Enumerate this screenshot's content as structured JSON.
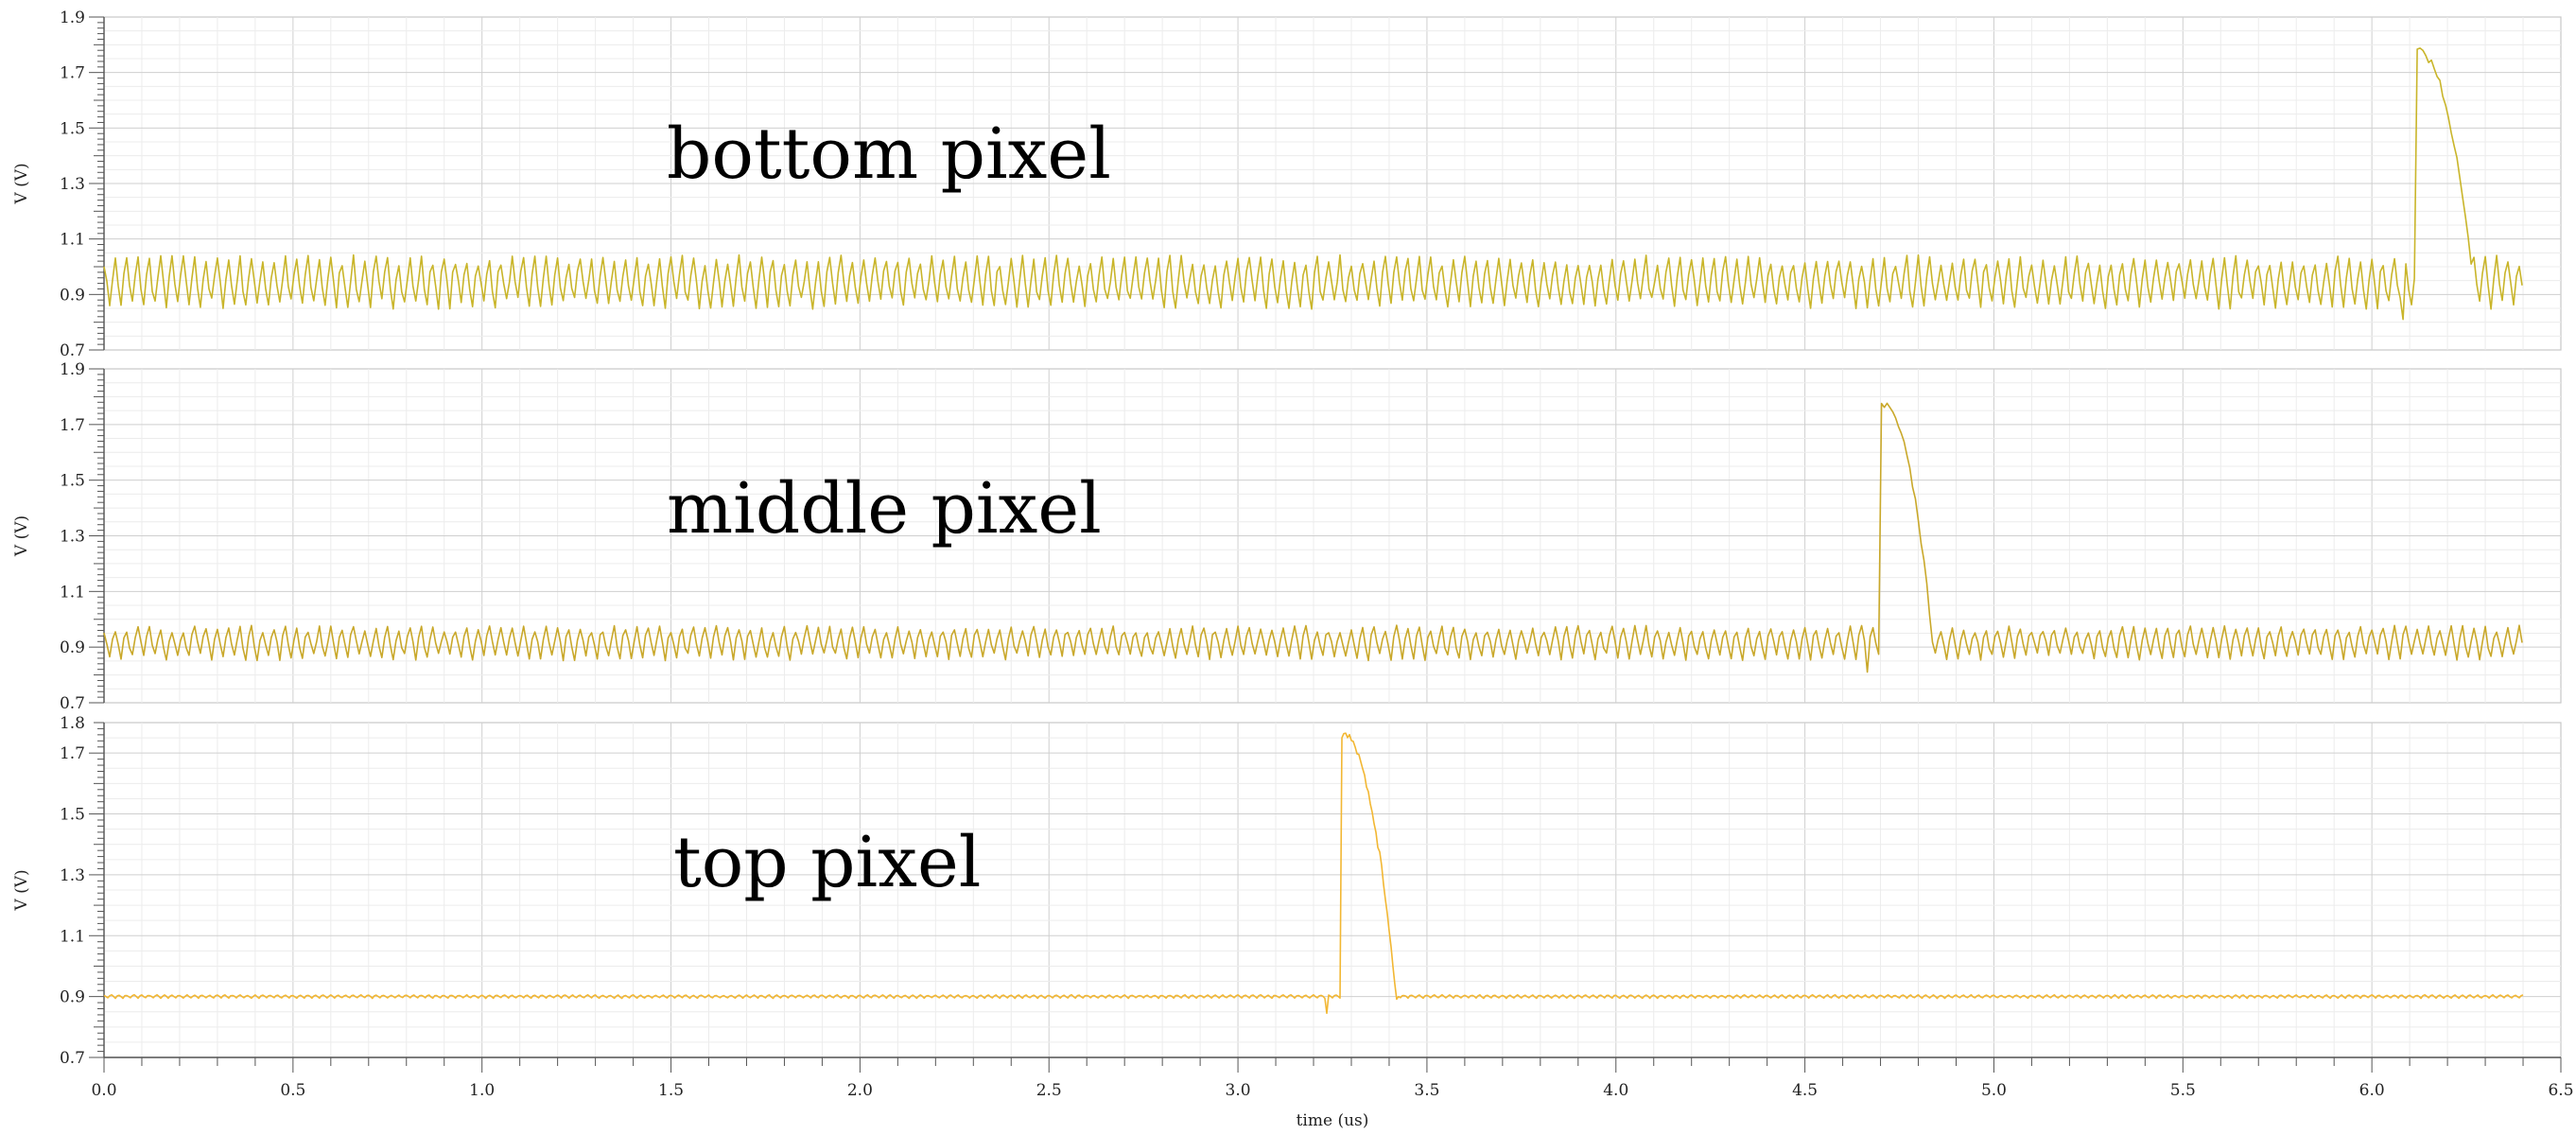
{
  "chart_data": [
    {
      "type": "line",
      "title": "",
      "annotation": "bottom pixel",
      "xlabel": "",
      "ylabel": "V (V)",
      "xlim": [
        0.0,
        6.5
      ],
      "ylim": [
        0.7,
        1.9
      ],
      "y_ticks": [
        "0.7",
        "0.9",
        "1.1",
        "1.3",
        "1.5",
        "1.7",
        "1.9"
      ],
      "grid": true,
      "series_color": "#c9b52a",
      "waveform": {
        "baseline": 0.93,
        "ripple_low": 0.86,
        "ripple_high": 1.03,
        "ripple_period_us": 0.03,
        "pulse_start_us": 6.12,
        "pulse_peak": 1.79,
        "pulse_end_us": 6.27,
        "duration_us": 6.4
      }
    },
    {
      "type": "line",
      "title": "",
      "annotation": "middle pixel",
      "xlabel": "",
      "ylabel": "V (V)",
      "xlim": [
        0.0,
        6.5
      ],
      "ylim": [
        0.7,
        1.9
      ],
      "y_ticks": [
        "0.7",
        "0.9",
        "1.1",
        "1.3",
        "1.5",
        "1.7",
        "1.9"
      ],
      "grid": true,
      "series_color": "#c9a82a",
      "waveform": {
        "baseline": 0.91,
        "ripple_low": 0.86,
        "ripple_high": 0.97,
        "ripple_period_us": 0.03,
        "pulse_start_us": 4.7,
        "pulse_peak": 1.79,
        "pulse_end_us": 4.84,
        "duration_us": 6.4
      }
    },
    {
      "type": "line",
      "title": "",
      "annotation": "top pixel",
      "xlabel": "time (us)",
      "ylabel": "V (V)",
      "xlim": [
        0.0,
        6.5
      ],
      "ylim": [
        0.7,
        1.8
      ],
      "y_ticks": [
        "0.7",
        "0.9",
        "1.1",
        "1.3",
        "1.5",
        "1.7",
        "1.8"
      ],
      "x_ticks": [
        "0.0",
        "0.5",
        "1.0",
        "1.5",
        "2.0",
        "2.5",
        "3.0",
        "3.5",
        "4.0",
        "4.5",
        "5.0",
        "5.5",
        "6.0",
        "6.5"
      ],
      "grid": true,
      "series_color": "#f2b733",
      "waveform": {
        "baseline": 0.9,
        "ripple_low": 0.895,
        "ripple_high": 0.905,
        "ripple_period_us": 0.02,
        "pulse_start_us": 3.27,
        "pulse_peak": 1.78,
        "pulse_end_us": 3.42,
        "duration_us": 6.4
      }
    }
  ]
}
